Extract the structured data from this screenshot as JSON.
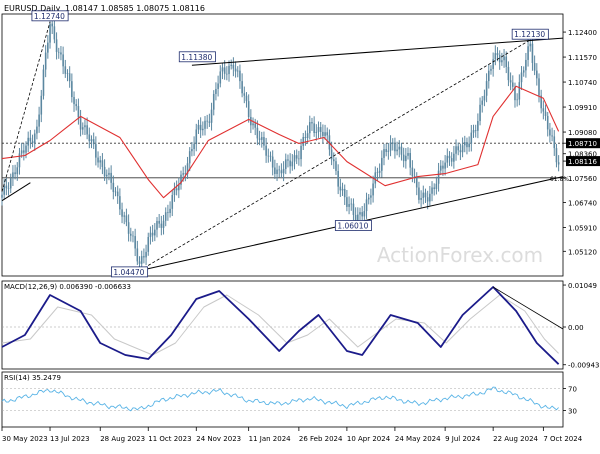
{
  "header": {
    "symbol_label": "EURUSD,Daily",
    "ohlc_label": "1.08147 1.08585 1.08075 1.08116"
  },
  "watermark": "ActionForex.com",
  "chart_data": [
    {
      "type": "line",
      "panel": "price",
      "title": "EURUSD,Daily",
      "series": [
        {
          "name": "EURUSD",
          "style": "candlestick",
          "color": "#5b87a0",
          "x": [
            "2023-05-30",
            "2023-06-15",
            "2023-07-01",
            "2023-07-13",
            "2023-07-25",
            "2023-08-10",
            "2023-08-28",
            "2023-09-15",
            "2023-10-03",
            "2023-10-11",
            "2023-10-25",
            "2023-11-10",
            "2023-11-24",
            "2023-12-05",
            "2023-12-15",
            "2023-12-28",
            "2024-01-11",
            "2024-01-25",
            "2024-02-08",
            "2024-02-26",
            "2024-03-08",
            "2024-03-20",
            "2024-04-02",
            "2024-04-10",
            "2024-04-18",
            "2024-04-30",
            "2024-05-15",
            "2024-05-24",
            "2024-06-05",
            "2024-06-14",
            "2024-06-28",
            "2024-07-09",
            "2024-07-25",
            "2024-08-08",
            "2024-08-22",
            "2024-09-02",
            "2024-09-12",
            "2024-09-25",
            "2024-10-07",
            "2024-10-15",
            "2024-10-21"
          ],
          "y": [
            1.069,
            1.082,
            1.092,
            1.127,
            1.113,
            1.094,
            1.081,
            1.067,
            1.047,
            1.055,
            1.062,
            1.075,
            1.09,
            1.095,
            1.109,
            1.114,
            1.097,
            1.085,
            1.077,
            1.084,
            1.093,
            1.091,
            1.075,
            1.067,
            1.062,
            1.068,
            1.086,
            1.085,
            1.083,
            1.069,
            1.071,
            1.082,
            1.085,
            1.094,
            1.117,
            1.113,
            1.102,
            1.12,
            1.096,
            1.088,
            1.081
          ]
        },
        {
          "name": "Moving average",
          "color": "#e03030",
          "x": [
            "2023-05-30",
            "2023-06-20",
            "2023-07-13",
            "2023-08-10",
            "2023-09-15",
            "2023-10-11",
            "2023-10-25",
            "2023-11-10",
            "2023-12-05",
            "2024-01-11",
            "2024-02-08",
            "2024-02-26",
            "2024-03-20",
            "2024-04-10",
            "2024-05-15",
            "2024-06-14",
            "2024-07-09",
            "2024-08-08",
            "2024-08-22",
            "2024-09-12",
            "2024-10-07",
            "2024-10-21"
          ],
          "y": [
            1.082,
            1.083,
            1.088,
            1.096,
            1.089,
            1.075,
            1.069,
            1.074,
            1.088,
            1.095,
            1.09,
            1.087,
            1.089,
            1.081,
            1.073,
            1.076,
            1.077,
            1.08,
            1.096,
            1.106,
            1.102,
            1.091
          ]
        }
      ],
      "trendlines": [
        {
          "from": [
            "2023-10-03",
            1.0448
          ],
          "to": [
            "2024-10-25",
            1.076
          ]
        },
        {
          "from": [
            "2023-11-20",
            1.113
          ],
          "to": [
            "2024-10-25",
            1.122
          ]
        },
        {
          "from": [
            "2023-10-03",
            1.0448
          ],
          "to": [
            "2024-09-25",
            1.1214
          ]
        },
        {
          "from": [
            "2023-05-30",
            1.071
          ],
          "to": [
            "2023-07-13",
            1.1274
          ]
        },
        {
          "from": [
            "2023-05-30",
            1.068
          ],
          "to": [
            "2023-06-25",
            1.074
          ]
        }
      ],
      "horizontal_lines": [
        {
          "value": 1.0871,
          "style": "dotted"
        },
        {
          "value": 1.0756,
          "style": "solid"
        }
      ],
      "annotations": [
        {
          "text": "1.12740",
          "x": "2023-07-13",
          "y": 1.1274
        },
        {
          "text": "1.11380",
          "x": "2023-11-25",
          "y": 1.1138
        },
        {
          "text": "1.12130",
          "x": "2024-09-25",
          "y": 1.1213
        },
        {
          "text": "1.06010",
          "x": "2024-04-16",
          "y": 1.0601
        },
        {
          "text": "1.04470",
          "x": "2023-10-03",
          "y": 1.0447
        },
        {
          "text": "61.8%",
          "x": "2024-10-24",
          "y": 1.0756
        }
      ],
      "y_ticks": [
        "1.12400",
        "1.11570",
        "1.10740",
        "1.09910",
        "1.09080",
        "1.08710",
        "1.08360",
        "1.08116",
        "1.07560",
        "1.06740",
        "1.05910",
        "1.05120"
      ],
      "current_price": "1.08116",
      "level_label": "1.08710",
      "ylim": [
        1.043,
        1.13
      ],
      "grid": false
    },
    {
      "type": "line",
      "panel": "macd",
      "title": "MACD(12,26,9) 0.006390 -0.006633",
      "series": [
        {
          "name": "MACD",
          "color": "#1b1b8a",
          "x": [
            "2023-05-30",
            "2023-06-20",
            "2023-07-13",
            "2023-08-10",
            "2023-08-28",
            "2023-09-20",
            "2023-10-11",
            "2023-11-01",
            "2023-11-24",
            "2023-12-15",
            "2024-01-11",
            "2024-02-08",
            "2024-02-26",
            "2024-03-15",
            "2024-04-10",
            "2024-04-24",
            "2024-05-20",
            "2024-06-14",
            "2024-07-05",
            "2024-07-25",
            "2024-08-22",
            "2024-09-12",
            "2024-10-01",
            "2024-10-21"
          ],
          "y": [
            -0.005,
            -0.002,
            0.008,
            0.004,
            -0.004,
            -0.007,
            -0.008,
            -0.002,
            0.007,
            0.009,
            0.002,
            -0.006,
            -0.001,
            0.003,
            -0.006,
            -0.007,
            0.003,
            0.001,
            -0.005,
            0.003,
            0.01,
            0.004,
            -0.004,
            -0.0093
          ]
        },
        {
          "name": "Signal",
          "color": "#c8c8c8",
          "x": [
            "2023-05-30",
            "2023-06-25",
            "2023-07-20",
            "2023-08-20",
            "2023-09-10",
            "2023-10-15",
            "2023-11-05",
            "2023-12-01",
            "2023-12-22",
            "2024-01-20",
            "2024-02-15",
            "2024-03-05",
            "2024-03-25",
            "2024-04-20",
            "2024-05-25",
            "2024-06-20",
            "2024-07-10",
            "2024-08-01",
            "2024-08-28",
            "2024-09-20",
            "2024-10-08",
            "2024-10-21"
          ],
          "y": [
            -0.004,
            -0.003,
            0.005,
            0.003,
            -0.003,
            -0.007,
            -0.004,
            0.005,
            0.008,
            0.003,
            -0.004,
            -0.002,
            0.002,
            -0.005,
            0.002,
            0.001,
            -0.004,
            0.002,
            0.008,
            0.004,
            -0.003,
            -0.0066
          ]
        }
      ],
      "trendlines": [
        {
          "from": [
            "2024-08-22",
            0.01
          ],
          "to": [
            "2024-10-25",
            -0.0005
          ]
        }
      ],
      "y_ticks": [
        "0.01049",
        "0.00",
        "-0.009435"
      ],
      "ylim": [
        -0.0105,
        0.0115
      ]
    },
    {
      "type": "line",
      "panel": "rsi",
      "title": "RSI(14) 35.2479",
      "series": [
        {
          "name": "RSI(14)",
          "color": "#5ab4e6",
          "x": [
            "2023-05-30",
            "2023-06-20",
            "2023-07-13",
            "2023-08-10",
            "2023-09-05",
            "2023-10-03",
            "2023-10-25",
            "2023-11-24",
            "2023-12-15",
            "2024-01-11",
            "2024-02-08",
            "2024-03-08",
            "2024-04-10",
            "2024-05-15",
            "2024-06-14",
            "2024-07-09",
            "2024-08-08",
            "2024-08-22",
            "2024-09-12",
            "2024-10-01",
            "2024-10-14",
            "2024-10-21"
          ],
          "y": [
            45,
            55,
            68,
            48,
            38,
            32,
            50,
            62,
            66,
            48,
            42,
            52,
            38,
            55,
            42,
            52,
            60,
            70,
            58,
            42,
            33,
            35.2479
          ]
        }
      ],
      "levels": [
        70,
        30
      ],
      "y_ticks": [
        "70",
        "30"
      ],
      "ylim": [
        0,
        100
      ]
    }
  ],
  "x_axis": {
    "start": "2023-05-30",
    "end": "2024-10-25",
    "tick_labels": [
      {
        "date": "2023-05-30",
        "label": "30 May 2023"
      },
      {
        "date": "2023-07-13",
        "label": "13 Jul 2023"
      },
      {
        "date": "2023-08-28",
        "label": "28 Aug 2023"
      },
      {
        "date": "2023-10-11",
        "label": "11 Oct 2023"
      },
      {
        "date": "2023-11-24",
        "label": "24 Nov 2023"
      },
      {
        "date": "2024-01-11",
        "label": "11 Jan 2024"
      },
      {
        "date": "2024-02-26",
        "label": "26 Feb 2024"
      },
      {
        "date": "2024-04-10",
        "label": "10 Apr 2024"
      },
      {
        "date": "2024-05-24",
        "label": "24 May 2024"
      },
      {
        "date": "2024-07-09",
        "label": "9 Jul 2024"
      },
      {
        "date": "2024-08-22",
        "label": "22 Aug 2024"
      },
      {
        "date": "2024-10-07",
        "label": "7 Oct 2024"
      }
    ]
  },
  "colors": {
    "background": "#ffffff",
    "axis": "#000000",
    "price": "#5b87a0",
    "moving_average": "#e03030",
    "macd": "#1b1b8a",
    "signal": "#c8c8c8",
    "rsi": "#5ab4e6",
    "label_box": "#1f2d6e"
  }
}
